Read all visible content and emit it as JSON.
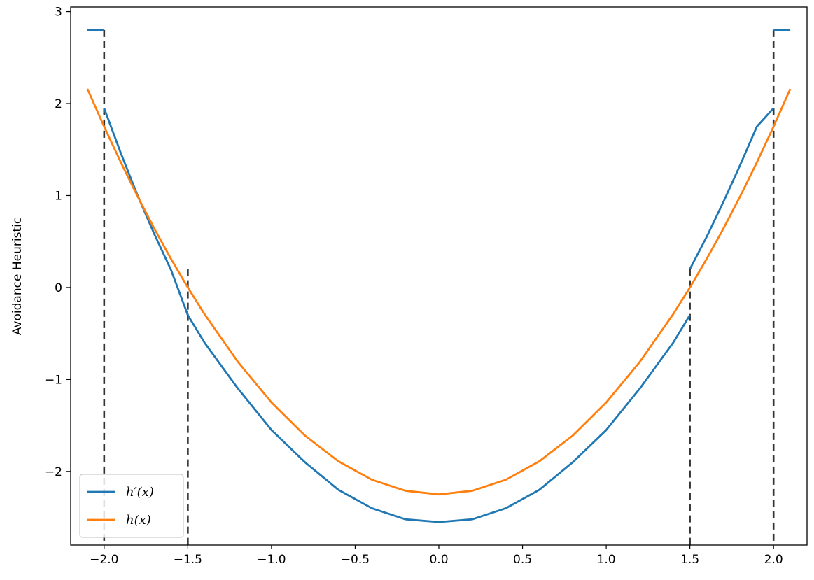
{
  "chart_data": {
    "type": "line",
    "title": "",
    "xlabel": "",
    "ylabel": "Avoidance Heuristic",
    "xlim": [
      -2.2,
      2.2
    ],
    "ylim": [
      -2.8,
      3.05
    ],
    "grid": false,
    "legend_position": "lower-left",
    "x_ticks": [
      {
        "value": -2.0,
        "label": "−2.0"
      },
      {
        "value": -1.5,
        "label": "−1.5"
      },
      {
        "value": -1.0,
        "label": "−1.0"
      },
      {
        "value": -0.5,
        "label": "−0.5"
      },
      {
        "value": 0.0,
        "label": "0.0"
      },
      {
        "value": 0.5,
        "label": "0.5"
      },
      {
        "value": 1.0,
        "label": "1.0"
      },
      {
        "value": 1.5,
        "label": "1.5"
      },
      {
        "value": 2.0,
        "label": "2.0"
      }
    ],
    "y_ticks": [
      {
        "value": -2,
        "label": "−2"
      },
      {
        "value": -1,
        "label": "−1"
      },
      {
        "value": 0,
        "label": "0"
      },
      {
        "value": 1,
        "label": "1"
      },
      {
        "value": 2,
        "label": "2"
      },
      {
        "value": 3,
        "label": "3"
      }
    ],
    "series": [
      {
        "name": "h′(x)",
        "color": "#1f77b4",
        "segments": [
          [
            [
              -2.1,
              2.8
            ],
            [
              -2.0,
              2.8
            ]
          ],
          [
            [
              -2.0,
              1.95
            ],
            [
              -1.9,
              1.46
            ],
            [
              -1.8,
              1.0
            ],
            [
              -1.7,
              0.58
            ],
            [
              -1.6,
              0.19
            ],
            [
              -1.5,
              -0.3
            ]
          ],
          [
            [
              -1.5,
              -0.3
            ],
            [
              -1.4,
              -0.6
            ],
            [
              -1.2,
              -1.1
            ],
            [
              -1.0,
              -1.55
            ],
            [
              -0.8,
              -1.9
            ],
            [
              -0.6,
              -2.2
            ],
            [
              -0.4,
              -2.4
            ],
            [
              -0.2,
              -2.52
            ],
            [
              0.0,
              -2.55
            ],
            [
              0.2,
              -2.52
            ],
            [
              0.4,
              -2.4
            ],
            [
              0.6,
              -2.2
            ],
            [
              0.8,
              -1.9
            ],
            [
              1.0,
              -1.55
            ],
            [
              1.2,
              -1.1
            ],
            [
              1.4,
              -0.6
            ],
            [
              1.5,
              -0.3
            ]
          ],
          [
            [
              1.5,
              0.2
            ],
            [
              1.6,
              0.55
            ],
            [
              1.7,
              0.93
            ],
            [
              1.8,
              1.33
            ],
            [
              1.9,
              1.75
            ],
            [
              2.0,
              1.95
            ]
          ],
          [
            [
              2.0,
              2.8
            ],
            [
              2.1,
              2.8
            ]
          ]
        ]
      },
      {
        "name": "h(x)",
        "color": "#ff7f0e",
        "segments": [
          [
            [
              -2.1,
              2.16
            ],
            [
              -2.0,
              1.75
            ],
            [
              -1.9,
              1.36
            ],
            [
              -1.8,
              0.99
            ],
            [
              -1.7,
              0.64
            ],
            [
              -1.6,
              0.31
            ],
            [
              -1.5,
              0.0
            ],
            [
              -1.4,
              -0.29
            ],
            [
              -1.2,
              -0.81
            ],
            [
              -1.0,
              -1.25
            ],
            [
              -0.8,
              -1.61
            ],
            [
              -0.6,
              -1.89
            ],
            [
              -0.4,
              -2.09
            ],
            [
              -0.2,
              -2.21
            ],
            [
              0.0,
              -2.25
            ],
            [
              0.2,
              -2.21
            ],
            [
              0.4,
              -2.09
            ],
            [
              0.6,
              -1.89
            ],
            [
              0.8,
              -1.61
            ],
            [
              1.0,
              -1.25
            ],
            [
              1.2,
              -0.81
            ],
            [
              1.4,
              -0.29
            ],
            [
              1.5,
              0.0
            ],
            [
              1.6,
              0.31
            ],
            [
              1.7,
              0.64
            ],
            [
              1.8,
              0.99
            ],
            [
              1.9,
              1.36
            ],
            [
              2.0,
              1.75
            ],
            [
              2.1,
              2.16
            ]
          ]
        ]
      }
    ],
    "vertical_lines": [
      {
        "x": -2.0,
        "y_top": 2.8,
        "style": "dashed",
        "color": "#333333"
      },
      {
        "x": -1.5,
        "y_top": 0.2,
        "style": "dashed",
        "color": "#333333"
      },
      {
        "x": 1.5,
        "y_top": 0.2,
        "style": "dashed",
        "color": "#333333"
      },
      {
        "x": 2.0,
        "y_top": 2.8,
        "style": "dashed",
        "color": "#333333"
      }
    ]
  }
}
